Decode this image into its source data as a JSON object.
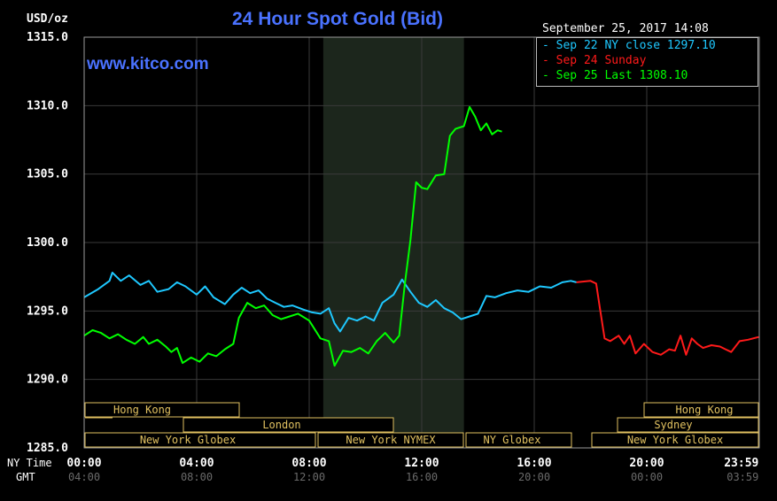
{
  "header": {
    "unit": "USD/oz",
    "title": "24 Hour Spot Gold (Bid)",
    "website": "www.kitco.com",
    "timestamp": "September 25, 2017 14:08"
  },
  "legend": [
    {
      "label": "- Sep 22 NY close 1297.10",
      "color": "#1ec8ff"
    },
    {
      "label": "- Sep 24 Sunday",
      "color": "#ff1a1a"
    },
    {
      "label": "- Sep 25 Last 1308.10",
      "color": "#00ff00"
    }
  ],
  "colors": {
    "blue": "#1ec8ff",
    "red": "#ff1a1a",
    "green": "#00ff00",
    "session": "#e0c060",
    "highlight": "#1c261c"
  },
  "axes": {
    "row_ny": "NY Time",
    "row_gmt": "GMT",
    "x_ny_labels": [
      "00:00",
      "04:00",
      "08:00",
      "12:00",
      "16:00",
      "20:00",
      "23:59"
    ],
    "x_gmt_labels": [
      "04:00",
      "08:00",
      "12:00",
      "16:00",
      "20:00",
      "00:00",
      "03:59"
    ],
    "y_labels": [
      "1315.0",
      "1310.0",
      "1305.0",
      "1300.0",
      "1295.0",
      "1290.0",
      "1285.0"
    ]
  },
  "sessions": [
    {
      "label": "Hong Kong"
    },
    {
      "label": "London"
    },
    {
      "label": "New York Globex"
    },
    {
      "label": "New York NYMEX"
    },
    {
      "label": "NY Globex"
    },
    {
      "label": "Hong Kong"
    },
    {
      "label": "Sydney"
    },
    {
      "label": "New York Globex"
    }
  ],
  "chart_data": {
    "type": "line",
    "title": "24 Hour Spot Gold (Bid)",
    "ylabel": "USD/oz",
    "xlabel": "NY Time",
    "x_unit": "hours since 00:00 NY time",
    "xlim": [
      0,
      24
    ],
    "ylim": [
      1285,
      1315
    ],
    "y_ticks": [
      1285,
      1290,
      1295,
      1300,
      1305,
      1310,
      1315
    ],
    "grid": true,
    "highlight_range": [
      8.5,
      13.5
    ],
    "legend_position": "top-right",
    "series": [
      {
        "name": "Sep 22 NY close 1297.10",
        "color": "#1ec8ff",
        "points": [
          [
            0,
            1296.0
          ],
          [
            0.5,
            1296.6
          ],
          [
            0.9,
            1297.2
          ],
          [
            1.0,
            1297.8
          ],
          [
            1.3,
            1297.2
          ],
          [
            1.6,
            1297.6
          ],
          [
            2.0,
            1296.9
          ],
          [
            2.3,
            1297.2
          ],
          [
            2.6,
            1296.4
          ],
          [
            3.0,
            1296.6
          ],
          [
            3.3,
            1297.1
          ],
          [
            3.6,
            1296.8
          ],
          [
            4.0,
            1296.2
          ],
          [
            4.3,
            1296.8
          ],
          [
            4.6,
            1296.0
          ],
          [
            5.0,
            1295.5
          ],
          [
            5.3,
            1296.2
          ],
          [
            5.6,
            1296.7
          ],
          [
            5.9,
            1296.3
          ],
          [
            6.2,
            1296.5
          ],
          [
            6.5,
            1295.9
          ],
          [
            6.8,
            1295.6
          ],
          [
            7.1,
            1295.3
          ],
          [
            7.4,
            1295.4
          ],
          [
            7.8,
            1295.1
          ],
          [
            8.1,
            1294.9
          ],
          [
            8.4,
            1294.8
          ],
          [
            8.7,
            1295.2
          ],
          [
            8.9,
            1294.1
          ],
          [
            9.1,
            1293.5
          ],
          [
            9.4,
            1294.5
          ],
          [
            9.7,
            1294.3
          ],
          [
            10.0,
            1294.6
          ],
          [
            10.3,
            1294.3
          ],
          [
            10.6,
            1295.6
          ],
          [
            11.0,
            1296.2
          ],
          [
            11.3,
            1297.3
          ],
          [
            11.6,
            1296.4
          ],
          [
            11.9,
            1295.6
          ],
          [
            12.2,
            1295.3
          ],
          [
            12.5,
            1295.8
          ],
          [
            12.8,
            1295.2
          ],
          [
            13.1,
            1294.9
          ],
          [
            13.4,
            1294.4
          ],
          [
            13.7,
            1294.6
          ],
          [
            14.0,
            1294.8
          ],
          [
            14.3,
            1296.1
          ],
          [
            14.6,
            1296.0
          ],
          [
            15.0,
            1296.3
          ],
          [
            15.4,
            1296.5
          ],
          [
            15.8,
            1296.4
          ],
          [
            16.2,
            1296.8
          ],
          [
            16.6,
            1296.7
          ],
          [
            17.0,
            1297.1
          ],
          [
            17.3,
            1297.2
          ],
          [
            17.5,
            1297.1
          ]
        ]
      },
      {
        "name": "Sep 24 Sunday",
        "color": "#ff1a1a",
        "points": [
          [
            17.5,
            1297.1
          ],
          [
            18.0,
            1297.2
          ],
          [
            18.2,
            1297.0
          ],
          [
            18.35,
            1295.0
          ],
          [
            18.5,
            1293.0
          ],
          [
            18.7,
            1292.8
          ],
          [
            19.0,
            1293.2
          ],
          [
            19.2,
            1292.6
          ],
          [
            19.4,
            1293.2
          ],
          [
            19.6,
            1291.9
          ],
          [
            19.9,
            1292.6
          ],
          [
            20.2,
            1292.0
          ],
          [
            20.5,
            1291.8
          ],
          [
            20.8,
            1292.2
          ],
          [
            21.0,
            1292.1
          ],
          [
            21.2,
            1293.2
          ],
          [
            21.4,
            1291.8
          ],
          [
            21.6,
            1293.0
          ],
          [
            21.8,
            1292.6
          ],
          [
            22.0,
            1292.3
          ],
          [
            22.3,
            1292.5
          ],
          [
            22.6,
            1292.4
          ],
          [
            22.8,
            1292.2
          ],
          [
            23.0,
            1292.0
          ],
          [
            23.3,
            1292.8
          ],
          [
            23.6,
            1292.9
          ],
          [
            23.98,
            1293.1
          ]
        ]
      },
      {
        "name": "Sep 25 Last 1308.10",
        "color": "#00ff00",
        "points": [
          [
            0,
            1293.2
          ],
          [
            0.3,
            1293.6
          ],
          [
            0.6,
            1293.4
          ],
          [
            0.9,
            1293.0
          ],
          [
            1.2,
            1293.3
          ],
          [
            1.5,
            1292.9
          ],
          [
            1.8,
            1292.6
          ],
          [
            2.1,
            1293.1
          ],
          [
            2.3,
            1292.6
          ],
          [
            2.6,
            1292.9
          ],
          [
            2.9,
            1292.4
          ],
          [
            3.1,
            1292.0
          ],
          [
            3.3,
            1292.3
          ],
          [
            3.5,
            1291.2
          ],
          [
            3.8,
            1291.6
          ],
          [
            4.1,
            1291.3
          ],
          [
            4.4,
            1291.9
          ],
          [
            4.7,
            1291.7
          ],
          [
            5.0,
            1292.2
          ],
          [
            5.3,
            1292.6
          ],
          [
            5.5,
            1294.5
          ],
          [
            5.8,
            1295.6
          ],
          [
            6.1,
            1295.2
          ],
          [
            6.4,
            1295.4
          ],
          [
            6.7,
            1294.7
          ],
          [
            7.0,
            1294.4
          ],
          [
            7.3,
            1294.6
          ],
          [
            7.6,
            1294.8
          ],
          [
            8.0,
            1294.3
          ],
          [
            8.4,
            1293.0
          ],
          [
            8.7,
            1292.8
          ],
          [
            8.9,
            1291.0
          ],
          [
            9.2,
            1292.1
          ],
          [
            9.5,
            1292.0
          ],
          [
            9.8,
            1292.3
          ],
          [
            10.1,
            1291.9
          ],
          [
            10.4,
            1292.8
          ],
          [
            10.7,
            1293.4
          ],
          [
            11.0,
            1292.7
          ],
          [
            11.2,
            1293.2
          ],
          [
            11.4,
            1297.0
          ],
          [
            11.6,
            1300.2
          ],
          [
            11.8,
            1304.4
          ],
          [
            12.0,
            1304.0
          ],
          [
            12.2,
            1303.9
          ],
          [
            12.5,
            1304.9
          ],
          [
            12.8,
            1305.0
          ],
          [
            13.0,
            1307.8
          ],
          [
            13.2,
            1308.3
          ],
          [
            13.5,
            1308.5
          ],
          [
            13.7,
            1309.9
          ],
          [
            13.9,
            1309.2
          ],
          [
            14.1,
            1308.2
          ],
          [
            14.3,
            1308.7
          ],
          [
            14.5,
            1307.9
          ],
          [
            14.7,
            1308.2
          ],
          [
            14.85,
            1308.1
          ]
        ]
      }
    ]
  }
}
